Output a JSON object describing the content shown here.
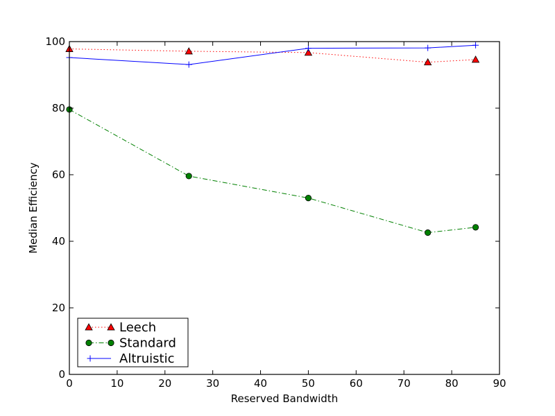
{
  "chart_data": {
    "type": "line",
    "xlabel": "Reserved Bandwidth",
    "ylabel": "Median Efficiency",
    "xlim": [
      0,
      90
    ],
    "ylim": [
      0,
      100
    ],
    "xticks": [
      0,
      10,
      20,
      30,
      40,
      50,
      60,
      70,
      80,
      90
    ],
    "yticks": [
      0,
      20,
      40,
      60,
      80,
      100
    ],
    "grid": false,
    "legend_position": "lower-left",
    "x": [
      0,
      25,
      50,
      75,
      85
    ],
    "series": [
      {
        "name": "Leech",
        "values": [
          97.8,
          97.1,
          96.7,
          93.8,
          94.6
        ],
        "color": "#ff0000",
        "marker": "triangle",
        "linestyle": "dotted"
      },
      {
        "name": "Standard",
        "values": [
          79.6,
          59.6,
          53.0,
          42.6,
          44.2
        ],
        "color": "#008000",
        "marker": "circle",
        "linestyle": "dashdot"
      },
      {
        "name": "Altruistic",
        "values": [
          95.2,
          93.1,
          98.0,
          98.1,
          98.9
        ],
        "color": "#0000ff",
        "marker": "plus",
        "linestyle": "solid"
      }
    ]
  }
}
